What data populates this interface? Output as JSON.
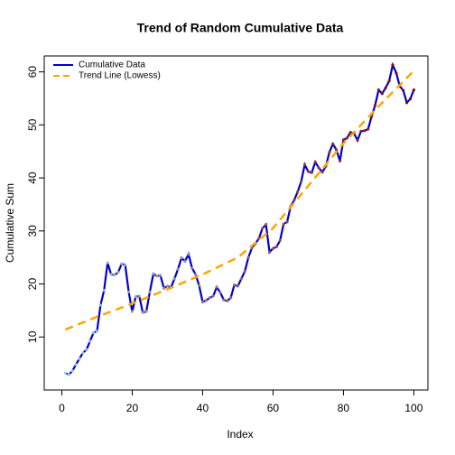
{
  "chart_data": {
    "type": "line",
    "title": "Trend of Random Cumulative Data",
    "x_label": "Index",
    "y_label": "Cumulative Sum",
    "x": [
      1,
      2,
      3,
      4,
      5,
      6,
      7,
      8,
      9,
      10,
      11,
      12,
      13,
      14,
      15,
      16,
      17,
      18,
      19,
      20,
      21,
      22,
      23,
      24,
      25,
      26,
      27,
      28,
      29,
      30,
      31,
      32,
      33,
      34,
      35,
      36,
      37,
      38,
      39,
      40,
      41,
      42,
      43,
      44,
      45,
      46,
      47,
      48,
      49,
      50,
      51,
      52,
      53,
      54,
      55,
      56,
      57,
      58,
      59,
      60,
      61,
      62,
      63,
      64,
      65,
      66,
      67,
      68,
      69,
      70,
      71,
      72,
      73,
      74,
      75,
      76,
      77,
      78,
      79,
      80,
      81,
      82,
      83,
      84,
      85,
      86,
      87,
      88,
      89,
      90,
      91,
      92,
      93,
      94,
      95,
      96,
      97,
      98,
      99,
      100
    ],
    "series": [
      {
        "name": "Cumulative Data",
        "color": "#0000cd",
        "style": "solid",
        "point_colors": [
          "#9ecae1",
          "#8b0000"
        ],
        "values": [
          3.2,
          2.9,
          3.6,
          4.8,
          5.9,
          7.0,
          7.6,
          9.2,
          10.8,
          11.1,
          16.0,
          18.8,
          24.0,
          21.8,
          21.7,
          22.2,
          23.8,
          23.6,
          18.5,
          14.8,
          17.6,
          17.7,
          14.6,
          14.8,
          18.5,
          21.9,
          21.5,
          21.6,
          19.2,
          19.6,
          19.3,
          21.0,
          22.8,
          24.9,
          24.3,
          25.6,
          23.0,
          21.8,
          19.7,
          16.6,
          16.9,
          17.4,
          17.7,
          19.4,
          18.4,
          17.0,
          16.8,
          17.4,
          19.8,
          19.6,
          21.0,
          22.4,
          25.0,
          26.8,
          27.6,
          28.6,
          30.5,
          31.2,
          26.0,
          26.7,
          27.0,
          28.2,
          31.3,
          31.7,
          34.6,
          35.8,
          37.4,
          39.3,
          42.5,
          41.2,
          41.0,
          43.0,
          41.9,
          41.1,
          42.2,
          44.8,
          46.4,
          45.3,
          43.2,
          47.2,
          47.5,
          48.6,
          48.4,
          47.1,
          48.8,
          48.9,
          49.2,
          51.6,
          53.7,
          56.6,
          55.9,
          57.0,
          58.3,
          61.3,
          59.8,
          57.3,
          56.5,
          54.2,
          54.9,
          56.6
        ]
      },
      {
        "name": "Trend Line (Lowess)",
        "color": "#ffa500",
        "style": "dashed",
        "x": [
          1,
          10,
          20,
          30,
          40,
          50,
          60,
          70,
          80,
          90,
          100
        ],
        "values": [
          11.4,
          13.8,
          16.3,
          19.0,
          21.8,
          25.0,
          30.5,
          38.5,
          46.5,
          53.5,
          60.2
        ]
      }
    ],
    "xlim": [
      -5,
      104
    ],
    "ylim": [
      0,
      63
    ],
    "xticks": [
      0,
      20,
      40,
      60,
      80,
      100
    ],
    "yticks": [
      10,
      20,
      30,
      40,
      50,
      60
    ],
    "legend": "top-left"
  }
}
